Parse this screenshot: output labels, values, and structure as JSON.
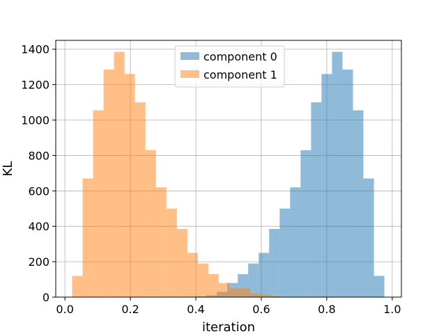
{
  "chart_data": {
    "type": "bar",
    "title": "",
    "xlabel": "iteration",
    "ylabel": "KL",
    "xlim": [
      -0.028,
      1.028
    ],
    "ylim": [
      0,
      1450
    ],
    "xticks": [
      0.0,
      0.2,
      0.4,
      0.6,
      0.8,
      1.0
    ],
    "xtick_labels": [
      "0.0",
      "0.2",
      "0.4",
      "0.6",
      "0.8",
      "1.0"
    ],
    "yticks": [
      0,
      200,
      400,
      600,
      800,
      1000,
      1200,
      1400
    ],
    "ytick_labels": [
      "0",
      "200",
      "400",
      "600",
      "800",
      "1000",
      "1200",
      "1400"
    ],
    "grid": true,
    "legend_position": "top-center",
    "series": [
      {
        "name": "component 0",
        "color": "#1f77b4",
        "opacity": 0.5,
        "bins": [
          [
            0.336,
            0.368,
            1
          ],
          [
            0.368,
            0.4,
            2
          ],
          [
            0.4,
            0.432,
            4
          ],
          [
            0.432,
            0.464,
            10
          ],
          [
            0.464,
            0.496,
            30
          ],
          [
            0.496,
            0.528,
            80
          ],
          [
            0.528,
            0.56,
            130
          ],
          [
            0.56,
            0.592,
            190
          ],
          [
            0.592,
            0.624,
            250
          ],
          [
            0.624,
            0.656,
            385
          ],
          [
            0.656,
            0.688,
            500
          ],
          [
            0.688,
            0.72,
            620
          ],
          [
            0.72,
            0.752,
            830
          ],
          [
            0.752,
            0.784,
            1100
          ],
          [
            0.784,
            0.816,
            1260
          ],
          [
            0.816,
            0.848,
            1385
          ],
          [
            0.848,
            0.88,
            1285
          ],
          [
            0.88,
            0.912,
            1055
          ],
          [
            0.912,
            0.944,
            670
          ],
          [
            0.944,
            0.976,
            120
          ]
        ]
      },
      {
        "name": "component 1",
        "color": "#ff7f0e",
        "opacity": 0.5,
        "bins": [
          [
            0.022,
            0.054,
            120
          ],
          [
            0.054,
            0.086,
            670
          ],
          [
            0.086,
            0.118,
            1055
          ],
          [
            0.118,
            0.15,
            1285
          ],
          [
            0.15,
            0.182,
            1385
          ],
          [
            0.182,
            0.214,
            1260
          ],
          [
            0.214,
            0.246,
            1100
          ],
          [
            0.246,
            0.278,
            830
          ],
          [
            0.278,
            0.31,
            620
          ],
          [
            0.31,
            0.342,
            500
          ],
          [
            0.342,
            0.374,
            385
          ],
          [
            0.374,
            0.406,
            250
          ],
          [
            0.406,
            0.438,
            190
          ],
          [
            0.438,
            0.47,
            130
          ],
          [
            0.47,
            0.502,
            80
          ],
          [
            0.502,
            0.534,
            50
          ],
          [
            0.534,
            0.566,
            50
          ],
          [
            0.566,
            0.598,
            20
          ],
          [
            0.598,
            0.63,
            15
          ],
          [
            0.63,
            0.662,
            4
          ]
        ]
      }
    ]
  }
}
